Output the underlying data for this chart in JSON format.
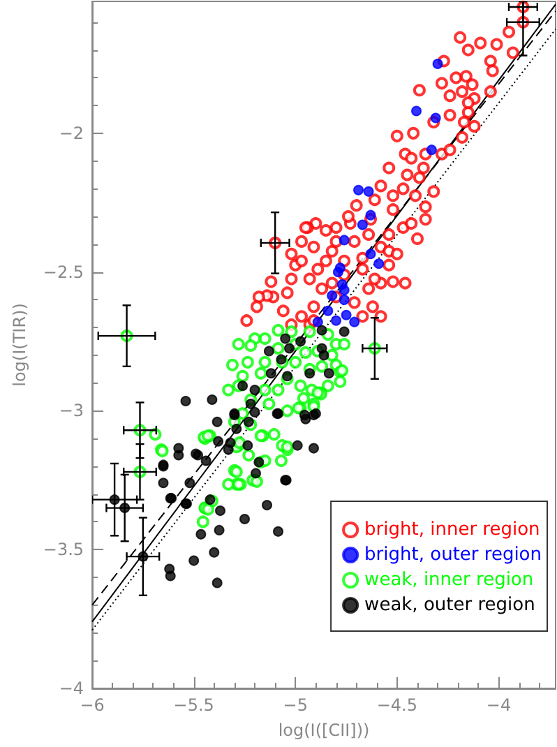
{
  "chart_data": {
    "type": "scatter",
    "xlabel": "log(I([CII]))",
    "ylabel": "log(I(TIR))",
    "xlim": [
      -6,
      -3.72
    ],
    "ylim": [
      -4,
      -1.525
    ],
    "xticks": [
      -6,
      -5.5,
      -5,
      -4.5,
      -4
    ],
    "yticks": [
      -4,
      -3.5,
      -3,
      -2.5,
      -2
    ],
    "grid": false,
    "legend": "bottom right",
    "series": [
      {
        "name": "bright, inner region",
        "color": "#ff0000",
        "marker": "open_circle",
        "x": [
          -4.19,
          -4.15,
          -4.09,
          -4.01,
          -3.95,
          -4.27,
          -4.21,
          -4.16,
          -4.04,
          -4.03,
          -3.93,
          -4.39,
          -4.28,
          -4.18,
          -4.12,
          -4.12,
          -4.18,
          -4.15,
          -4.32,
          -4.42,
          -4.5,
          -4.24,
          -4.17,
          -4.46,
          -4.36,
          -4.28,
          -4.24,
          -4.54,
          -4.45,
          -4.39,
          -4.32,
          -4.36,
          -4.36,
          -4.41,
          -4.47,
          -4.58,
          -4.61,
          -4.52,
          -4.47,
          -4.54,
          -4.43,
          -4.63,
          -4.7,
          -4.73,
          -4.8,
          -4.85,
          -4.9,
          -4.94,
          -4.97,
          -4.91,
          -4.82,
          -4.76,
          -4.67,
          -4.58,
          -4.54,
          -4.5,
          -4.46,
          -4.58,
          -4.61,
          -4.64,
          -4.62,
          -4.58,
          -4.67,
          -4.71,
          -4.8,
          -4.87,
          -4.93,
          -5.0,
          -5.02,
          -5.04,
          -5.11,
          -5.14,
          -5.18,
          -5.12,
          -4.97,
          -5.02,
          -4.95,
          -4.85,
          -4.89,
          -4.82,
          -4.91,
          -4.97,
          -5.06,
          -5.02,
          -4.93,
          -5.24,
          -5.19,
          -4.91,
          -4.76,
          -4.67,
          -4.54,
          -4.52,
          -4.4,
          -4.37,
          -4.24,
          -4.04,
          -4.13,
          -4.15,
          -4.8,
          -4.71,
          -4.64,
          -4.74,
          -4.52,
          -4.43
        ],
        "values": [
          -1.655,
          -1.7,
          -1.675,
          -1.68,
          -1.635,
          -1.74,
          -1.8,
          -1.795,
          -1.74,
          -1.775,
          -1.71,
          -1.845,
          -1.82,
          -1.85,
          -1.875,
          -1.975,
          -2.015,
          -1.925,
          -1.96,
          -2.0,
          -2.01,
          -1.935,
          -1.96,
          -2.075,
          -2.075,
          -2.075,
          -2.06,
          -2.125,
          -2.15,
          -2.16,
          -2.21,
          -2.265,
          -2.31,
          -2.225,
          -2.2,
          -2.19,
          -2.24,
          -2.275,
          -2.34,
          -2.365,
          -2.325,
          -2.31,
          -2.26,
          -2.325,
          -2.34,
          -2.35,
          -2.325,
          -2.34,
          -2.39,
          -2.41,
          -2.425,
          -2.46,
          -2.45,
          -2.41,
          -2.425,
          -2.435,
          -2.54,
          -2.54,
          -2.525,
          -2.56,
          -2.625,
          -2.66,
          -2.66,
          -2.61,
          -2.59,
          -2.56,
          -2.525,
          -2.475,
          -2.525,
          -2.575,
          -2.59,
          -2.585,
          -2.59,
          -2.535,
          -2.46,
          -2.435,
          -2.34,
          -2.46,
          -2.49,
          -2.54,
          -2.625,
          -2.66,
          -2.64,
          -2.69,
          -2.69,
          -2.675,
          -2.625,
          -2.675,
          -2.51,
          -2.49,
          -2.475,
          -2.535,
          -2.38,
          -2.125,
          -1.865,
          -1.85,
          -1.825,
          -1.89,
          -2.39,
          -2.39,
          -2.365,
          -2.3,
          -2.225,
          -2.09
        ]
      },
      {
        "name": "bright, outer region",
        "color": "#0000ff",
        "marker": "circle",
        "x": [
          -4.3,
          -4.405,
          -4.31,
          -4.33,
          -4.69,
          -4.64,
          -4.63,
          -4.67,
          -4.76,
          -4.63,
          -4.59,
          -4.78,
          -4.79,
          -4.77,
          -4.76,
          -4.82,
          -4.76,
          -4.84,
          -4.75,
          -4.89,
          -4.82,
          -4.8,
          -4.71
        ],
        "values": [
          -1.75,
          -1.92,
          -1.945,
          -2.06,
          -2.205,
          -2.21,
          -2.295,
          -2.33,
          -2.385,
          -2.435,
          -2.47,
          -2.485,
          -2.5,
          -2.545,
          -2.565,
          -2.585,
          -2.6,
          -2.64,
          -2.655,
          -2.68,
          null,
          -2.675,
          -2.68
        ]
      },
      {
        "name": "weak, inner region",
        "color": "#00ff00",
        "marker": "open_circle",
        "x": [
          -5.085,
          -5.02,
          -4.93,
          -4.84,
          -4.8,
          -4.76,
          -5.15,
          -5.2,
          -5.28,
          -5.22,
          -5.085,
          -5.0,
          -4.95,
          -4.89,
          -4.82,
          -4.8,
          -4.87,
          -4.93,
          -5.0,
          -5.065,
          -5.15,
          -5.235,
          -5.31,
          -5.26,
          -5.17,
          -5.04,
          -4.975,
          -4.92,
          -4.84,
          -4.78,
          -5.33,
          -5.28,
          -5.15,
          -5.085,
          -5.22,
          -5.13,
          -5.04,
          -4.975,
          -4.91,
          -4.875,
          -5.26,
          -5.3,
          -5.22,
          -5.105,
          -5.16,
          -5.28,
          -5.23,
          -5.17,
          -5.04,
          -5.065,
          -5.42,
          -5.445,
          -5.3,
          -5.29,
          -5.27,
          -5.2,
          -5.41,
          -5.445,
          -5.455,
          -5.66,
          -5.69,
          -5.655,
          -5.45,
          -5.43,
          -5.445,
          -5.43,
          -5.33,
          -5.28,
          -5.29,
          -5.29,
          -5.275,
          -5.17,
          -5.07,
          -5.04,
          -5.21,
          -5.19,
          -5.15,
          -4.985,
          -4.96,
          -4.91,
          -4.875,
          -4.89,
          -4.78,
          -4.77
        ],
        "values": [
          -2.71,
          -2.715,
          -2.715,
          -2.725,
          -2.76,
          -2.76,
          -2.74,
          -2.74,
          -2.76,
          -2.765,
          -2.775,
          -2.76,
          -2.79,
          -2.785,
          -2.8,
          -2.835,
          -2.84,
          -2.85,
          -2.825,
          -2.825,
          -2.825,
          -2.825,
          -2.835,
          -2.875,
          -2.865,
          -2.885,
          -2.91,
          -2.925,
          -2.91,
          -2.86,
          -2.925,
          -2.91,
          -2.925,
          -2.925,
          -2.96,
          -2.975,
          -3.0,
          -2.99,
          -2.975,
          -2.935,
          -3.01,
          -3.04,
          -3.05,
          -3.085,
          -3.09,
          -3.125,
          -3.16,
          -3.185,
          -3.14,
          -3.125,
          -3.09,
          -3.1,
          -3.215,
          -3.265,
          -3.265,
          -3.25,
          -3.325,
          -3.35,
          -3.4,
          -3.14,
          -3.085,
          -3.145,
          -3.095,
          -3.09,
          -3.35,
          -3.355,
          -3.265,
          -3.265,
          -3.22,
          -3.13,
          -3.115,
          -3.09,
          -3.18,
          -3.13,
          -3.25,
          -3.255,
          -3.18,
          -2.99,
          -2.955,
          -2.985,
          -2.94,
          -2.935,
          -2.895,
          -2.855
        ]
      },
      {
        "name": "weak, outer region",
        "color": "#000000",
        "marker": "circle",
        "x": [
          -5.05,
          -5.03,
          -4.975,
          -4.87,
          -4.86,
          -4.76,
          -4.87,
          -5.13,
          -5.07,
          -5.12,
          -5.04,
          -4.93,
          -4.835,
          -5.2,
          -5.22,
          -5.085,
          -4.955,
          -4.91,
          -5.41,
          -5.54,
          -5.3,
          -5.23,
          -5.29,
          -5.235,
          -5.33,
          -5.38,
          -5.48,
          -5.575,
          -5.65,
          -5.52,
          -5.65,
          -5.61,
          -5.54,
          -5.195,
          -5.05,
          -4.99,
          -4.91,
          -5.14,
          -5.25,
          -5.37,
          -5.65,
          -5.575,
          -5.615,
          -5.535,
          -5.42,
          -5.375,
          -5.465,
          -5.4,
          -5.5,
          -5.62,
          -5.615,
          -5.385,
          -5.085,
          -5.045,
          -4.9,
          -4.95,
          -5.09,
          -5.2,
          -5.3,
          -5.385,
          -5.44,
          -5.49,
          -5.32,
          -5.18,
          -5.26
        ],
        "values": [
          -2.74,
          -2.775,
          -2.75,
          -2.775,
          -2.8,
          -2.715,
          -2.71,
          -2.785,
          -2.815,
          -2.865,
          -2.875,
          -2.865,
          -2.865,
          -2.925,
          -2.975,
          -3.01,
          -3.015,
          -3.015,
          -2.96,
          -2.965,
          -3.015,
          -3.04,
          -3.065,
          -3.125,
          -3.14,
          -3.11,
          -3.16,
          -3.16,
          -3.2,
          -3.26,
          -3.26,
          -3.315,
          -3.335,
          -3.225,
          -3.25,
          -3.125,
          -3.135,
          -3.34,
          -3.39,
          -3.36,
          -3.195,
          -3.135,
          -3.315,
          -3.335,
          -3.32,
          -3.43,
          -3.445,
          -3.51,
          -3.54,
          -3.57,
          -3.595,
          -3.62,
          -3.435,
          -3.25,
          -3.01,
          -3.03,
          -3.01,
          -3.005,
          -3.01,
          -3.04,
          -3.18,
          -3.155,
          -3.115,
          -3.185,
          -2.91
        ]
      },
      {
        "color": "#ff0000",
        "marker": "open_circle",
        "x": [
          -5.1,
          -3.88,
          -3.88
        ],
        "values": [
          -2.395,
          -1.545,
          -1.6
        ],
        "errors": [
          0.11,
          [
            -1.6,
            -1.525
          ],
          [
            -1.72,
            -1.525
          ]
        ],
        "xerrors": [
          0.07,
          0.07,
          0.08
        ]
      },
      {
        "color": "#00ff00",
        "marker": "open_circle",
        "x": [
          -5.83,
          -4.61,
          -5.765,
          -5.765
        ],
        "values": [
          -2.73,
          -2.775,
          -3.07,
          -3.22
        ],
        "errors": [
          0.11,
          0.11,
          0.1,
          0.1
        ],
        "xerrors": [
          0.14,
          0.06,
          0.08,
          0.08
        ]
      },
      {
        "color": "#000000",
        "marker": "circle",
        "x": [
          -5.89,
          -5.84,
          -5.75
        ],
        "values": [
          -3.32,
          -3.35,
          -3.525
        ],
        "errors": [
          0.13,
          0.12,
          0.14
        ],
        "xerrors": [
          0.11,
          0.09,
          0.08
        ]
      },
      {
        "type": "line",
        "color": "#000000",
        "marker": "none",
        "line_style": "solid",
        "x": [
          -6,
          -3.72
        ],
        "values": [
          -3.76,
          -1.536
        ]
      },
      {
        "type": "line",
        "color": "#000000",
        "marker": "none",
        "line_style": "dashed",
        "x": [
          -6,
          -3.72
        ],
        "values": [
          -3.7,
          -1.56
        ]
      },
      {
        "type": "line",
        "color": "#000000",
        "marker": "none",
        "line_style": "dotted",
        "x": [
          -6,
          -3.72
        ],
        "values": [
          -3.79,
          -1.625
        ]
      }
    ]
  }
}
